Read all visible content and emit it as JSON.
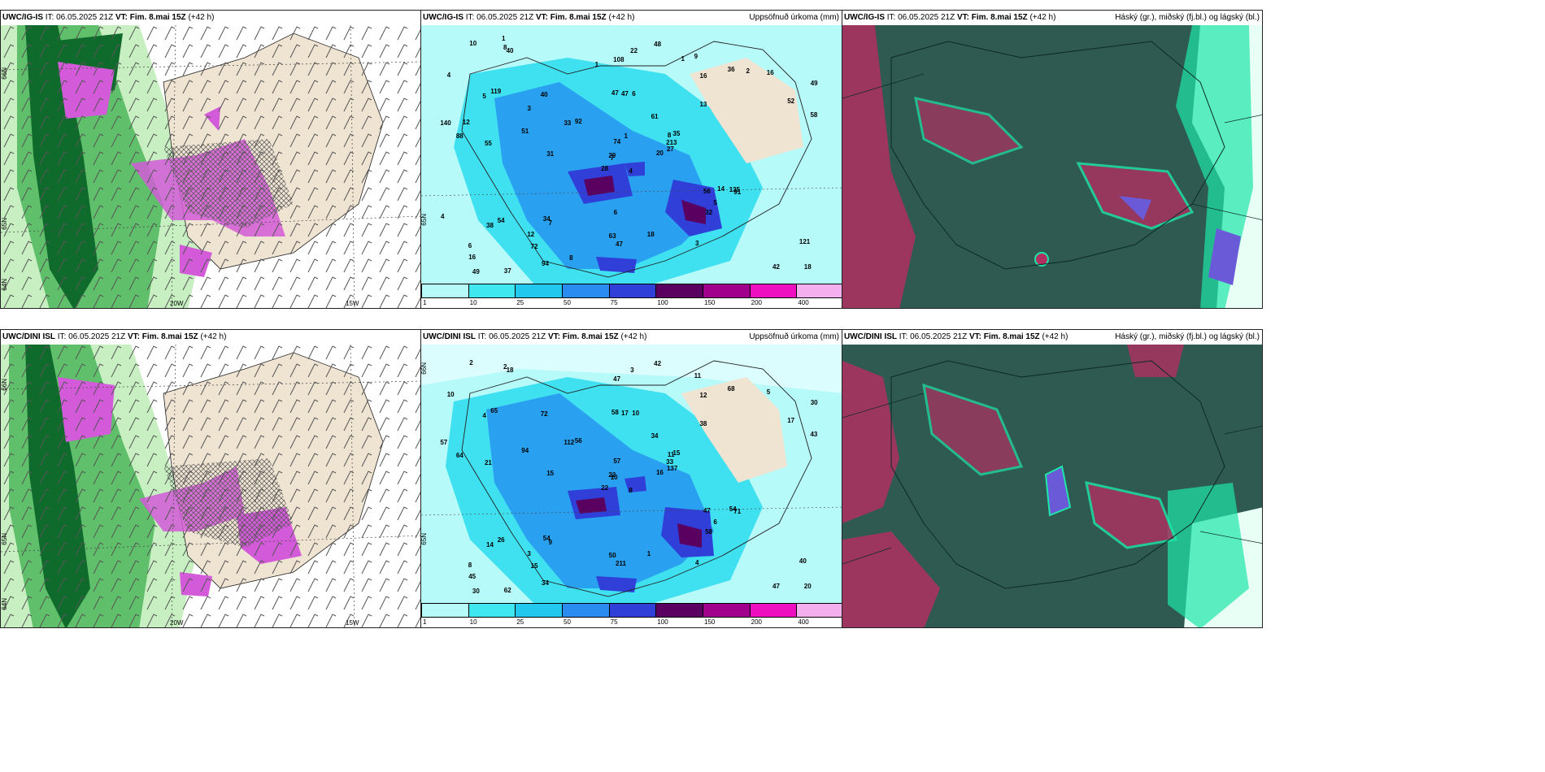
{
  "colors": {
    "land": "#efe3d2",
    "sea_light": "#ffffff",
    "green_light": "#c7efc1",
    "green_mid": "#5fbf6a",
    "green_dark": "#0e6b2c",
    "magenta": "#d35ad8",
    "cyan_light": "#b7fafa",
    "cyan": "#3fe0f0",
    "blue_mid": "#2aa0f0",
    "blue_dark": "#2f3fd8",
    "purple_dark": "#5a0060",
    "cloud_dark": "#2e5a52",
    "cloud_teal": "#1ee6a8",
    "cloud_red": "#b03060"
  },
  "panels": {
    "top_left": {
      "model": "UWC/IG-IS",
      "it_label": "IT:",
      "it_value": "06.05.2025 21Z",
      "vt_label": "VT:",
      "vt_value": "Fim. 8.mai 15Z",
      "lead": "(+42 h)",
      "lon_20": "20W",
      "lon_15": "15W",
      "lat_66": "66N",
      "lat_65": "65N",
      "lat_64": "64N"
    },
    "top_mid": {
      "model": "UWC/IG-IS",
      "it_label": "IT:",
      "it_value": "06.05.2025 21Z",
      "vt_label": "VT:",
      "vt_value": "Fim. 8.mai 15Z",
      "lead": "(+42 h)",
      "right_title": "Uppsöfnuð úrkoma (mm)",
      "lat_65": "65N"
    },
    "top_right": {
      "model": "UWC/IG-IS",
      "it_label": "IT:",
      "it_value": "06.05.2025 21Z",
      "vt_label": "VT:",
      "vt_value": "Fim. 8.mai 15Z",
      "lead": "(+42 h)",
      "right_title": "Háský (gr.), miðský (fj.bl.) og lágský (bl.)"
    },
    "bottom_left": {
      "model": "UWC/DINI ISL",
      "it_label": "IT:",
      "it_value": "06.05.2025 21Z",
      "vt_label": "VT:",
      "vt_value": "Fim. 8.mai 15Z",
      "lead": "(+42 h)",
      "lon_20": "20W",
      "lon_15": "15W",
      "lat_66": "66N",
      "lat_65": "65N",
      "lat_64": "64N"
    },
    "bottom_mid": {
      "model": "UWC/DINI ISL",
      "it_label": "IT:",
      "it_value": "06.05.2025 21Z",
      "vt_label": "VT:",
      "vt_value": "Fim. 8.mai 15Z",
      "lead": "(+42 h)",
      "right_title": "Uppsöfnuð úrkoma (mm)",
      "lat_66": "66N",
      "lat_65": "65N"
    },
    "bottom_right": {
      "model": "UWC/DINI ISL",
      "it_label": "IT:",
      "it_value": "06.05.2025 21Z",
      "vt_label": "VT:",
      "vt_value": "Fim. 8.mai 15Z",
      "lead": "(+42 h)",
      "right_title": "Háský (gr.), miðský (fj.bl.) og lágský (bl.)"
    }
  },
  "colorbar": {
    "ticks": [
      "1",
      "10",
      "25",
      "50",
      "75",
      "100",
      "150",
      "200",
      "400"
    ],
    "colors": [
      "#b7fafa",
      "#3fe8f0",
      "#22c8ee",
      "#2a8cf0",
      "#2f3fd8",
      "#5a0060",
      "#a0008c",
      "#ee10c0",
      "#f4b0ee"
    ]
  },
  "precip_labels_top": [
    "4",
    "5",
    "7",
    "6",
    "8",
    "7",
    "9",
    "6",
    "16",
    "20",
    "40",
    "18",
    "55",
    "49",
    "28",
    "13",
    "37",
    "47",
    "61",
    "54",
    "92",
    "16",
    "72",
    "47",
    "35",
    "91",
    "119",
    "108",
    "88",
    "56",
    "58",
    "29",
    "63",
    "74",
    "40",
    "36",
    "34",
    "42",
    "121",
    "135",
    "48",
    "33",
    "51",
    "32",
    "94",
    "140",
    "213",
    "49",
    "47",
    "27",
    "38",
    "52",
    "4",
    "5",
    "3",
    "12",
    "8",
    "10",
    "18",
    "16",
    "22",
    "31",
    "12",
    "3",
    "2",
    "1",
    "1",
    "1",
    "1",
    "4",
    "6",
    "8",
    "14"
  ],
  "precip_labels_bottom": [
    "8",
    "4",
    "10",
    "8",
    "11",
    "9",
    "11",
    "10",
    "12",
    "16",
    "18",
    "20",
    "21",
    "30",
    "22",
    "38",
    "62",
    "58",
    "34",
    "26",
    "56",
    "45",
    "15",
    "17",
    "15",
    "71",
    "65",
    "47",
    "64",
    "47",
    "43",
    "22",
    "50",
    "57",
    "72",
    "68",
    "54",
    "47",
    "40",
    "54",
    "42",
    "112",
    "94",
    "58",
    "34",
    "57",
    "33",
    "30",
    "211",
    "137",
    "14",
    "17",
    "10",
    "6",
    "4",
    "3",
    "2",
    "2",
    "1",
    "5",
    "3",
    "15"
  ]
}
